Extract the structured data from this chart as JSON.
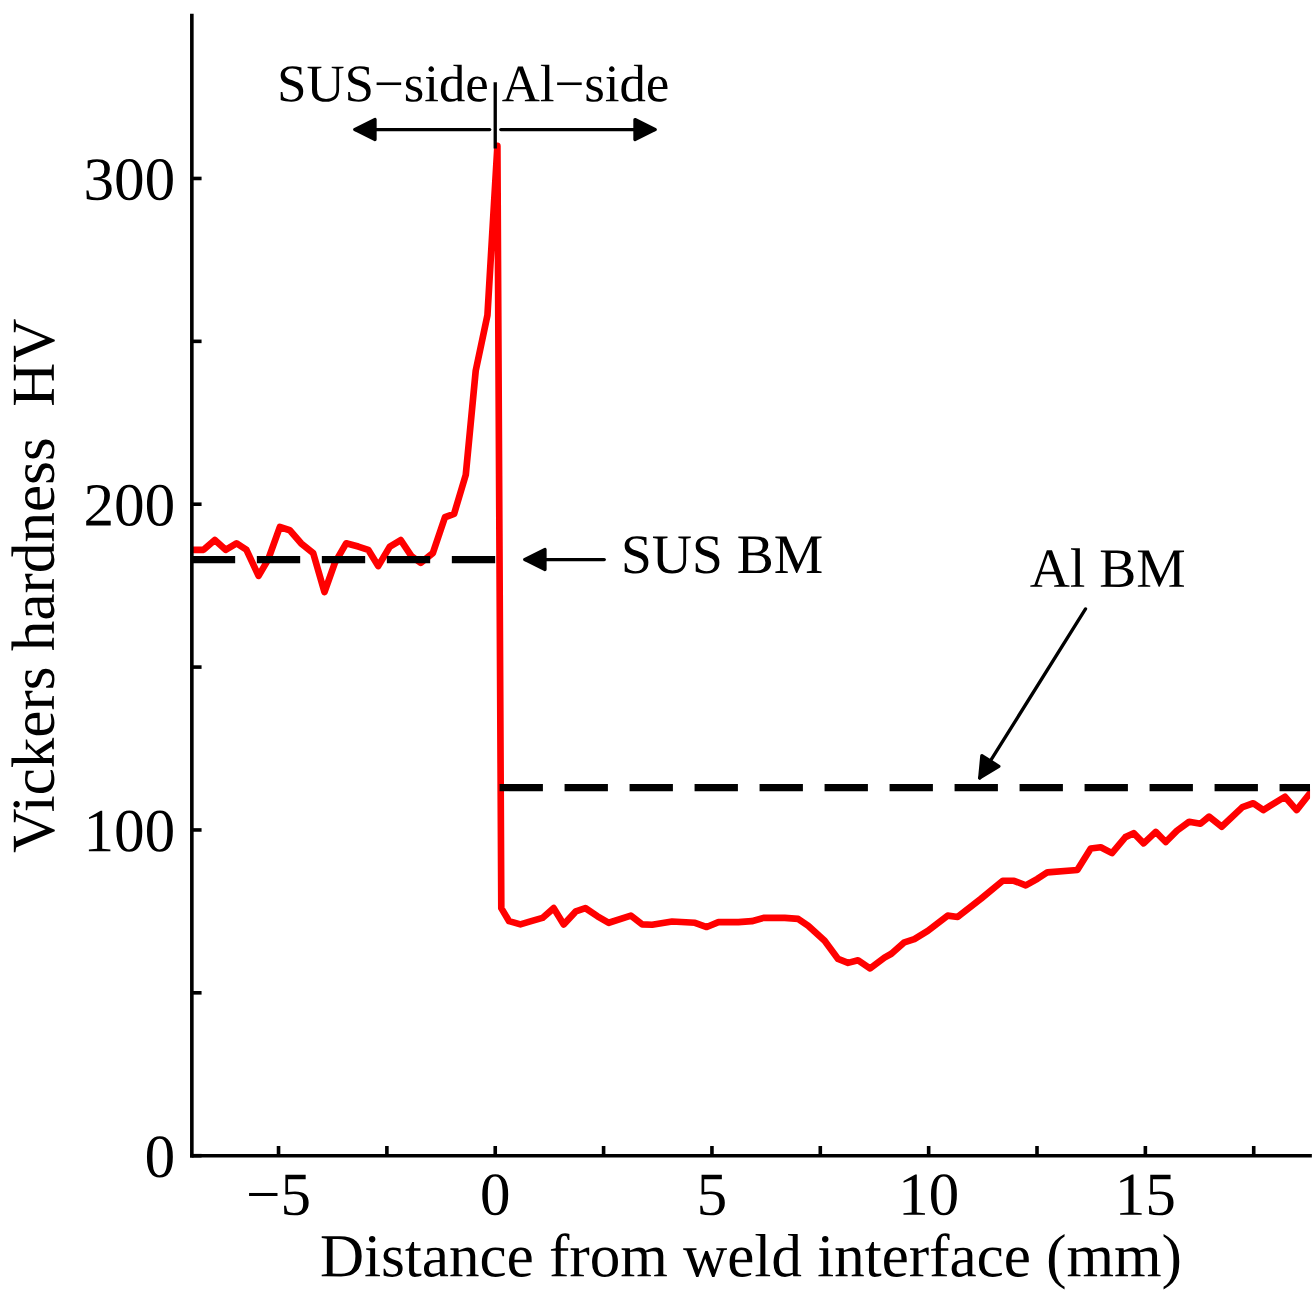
{
  "chart_data": {
    "type": "line",
    "xlabel": "Distance from weld interface (mm)",
    "ylabel": "Vickers hardness  HV",
    "xlim": [
      -7,
      18.8
    ],
    "ylim": [
      0,
      350
    ],
    "xticks": [
      -5,
      {
        "value": -2.5,
        "label": null
      },
      0,
      {
        "value": 2.5,
        "label": null
      },
      5,
      {
        "value": 7.5,
        "label": null
      },
      10,
      {
        "value": 12.5,
        "label": null
      },
      15,
      {
        "value": 17.5,
        "label": null
      }
    ],
    "yticks": [
      0,
      {
        "value": 50,
        "label": null
      },
      100,
      {
        "value": 150,
        "label": null
      },
      200,
      {
        "value": 250,
        "label": null
      },
      300
    ],
    "grid": false,
    "marker": "none",
    "series": [
      {
        "color": "#ff0000",
        "line_style": "solid",
        "x": [
          -7.0,
          -6.73,
          -6.47,
          -6.22,
          -5.97,
          -5.74,
          -5.46,
          -5.24,
          -4.97,
          -4.74,
          -4.48,
          -4.2,
          -3.94,
          -3.7,
          -3.44,
          -3.16,
          -2.93,
          -2.7,
          -2.43,
          -2.18,
          -1.93,
          -1.72,
          -1.44,
          -1.16,
          -0.95,
          -0.68,
          -0.45,
          -0.18,
          0.05,
          0.14,
          0.32,
          0.58,
          0.83,
          1.09,
          1.35,
          1.58,
          1.86,
          2.08,
          2.36,
          2.62,
          3.13,
          3.39,
          3.62,
          4.08,
          4.61,
          4.88,
          5.15,
          5.61,
          5.92,
          6.19,
          6.68,
          6.99,
          7.22,
          7.6,
          7.91,
          8.14,
          8.37,
          8.65,
          8.98,
          9.14,
          9.44,
          9.67,
          9.98,
          10.44,
          10.67,
          11.21,
          11.71,
          11.97,
          12.24,
          12.51,
          12.74,
          13.43,
          13.74,
          13.97,
          14.23,
          14.54,
          14.73,
          14.96,
          15.24,
          15.47,
          15.73,
          16.01,
          16.27,
          16.47,
          16.76,
          17.24,
          17.49,
          17.72,
          18.22,
          18.49,
          18.8
        ],
        "values": [
          186,
          186,
          189,
          186,
          188,
          186,
          178,
          183,
          193,
          192,
          188,
          185,
          173,
          182,
          188,
          187,
          186,
          181,
          187,
          189,
          184,
          182,
          185,
          196,
          197,
          209,
          241,
          258,
          310,
          76,
          72,
          71,
          72,
          73,
          76,
          71,
          75,
          76,
          73.5,
          71.5,
          73.7,
          71,
          70.9,
          71.9,
          71.5,
          70.2,
          71.7,
          71.7,
          72,
          73,
          73,
          72.7,
          70.6,
          66,
          60.4,
          59.2,
          60,
          57.5,
          60.8,
          62,
          65.5,
          66.5,
          69,
          73.7,
          73.3,
          78.9,
          84.4,
          84.4,
          83,
          85,
          87,
          87.7,
          94.3,
          94.7,
          92.9,
          97.8,
          99,
          95.9,
          99.4,
          96.3,
          99.8,
          102.5,
          101.9,
          104.1,
          101,
          107,
          108.2,
          106.1,
          110.2,
          106.1,
          111.3
        ]
      },
      {
        "color": "#000000",
        "line_style": "dashed",
        "x": [
          -7,
          0
        ],
        "values": [
          183,
          183
        ]
      },
      {
        "color": "#000000",
        "line_style": "dashed",
        "x": [
          0.1,
          18.8
        ],
        "values": [
          113,
          113
        ]
      }
    ],
    "annotations": [
      "SUS−side",
      "Al−side",
      "SUS BM",
      "Al BM"
    ]
  }
}
